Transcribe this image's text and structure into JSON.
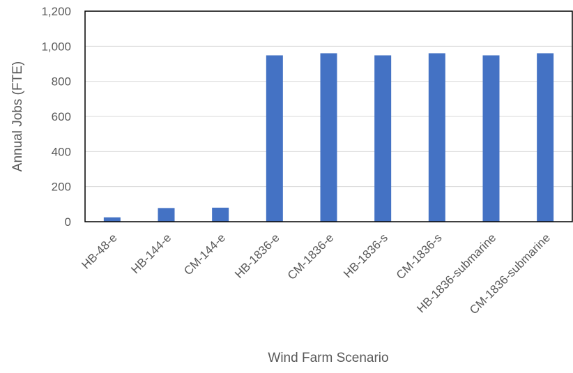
{
  "chart_data": {
    "type": "bar",
    "title": "",
    "xlabel": "Wind Farm Scenario",
    "ylabel": "Annual Jobs (FTE)",
    "ylim": [
      0,
      1200
    ],
    "yticks": [
      0,
      200,
      400,
      600,
      800,
      1000,
      1200
    ],
    "ytick_labels": [
      "0",
      "200",
      "400",
      "600",
      "800",
      "1,000",
      "1,200"
    ],
    "grid": true,
    "legend": "none",
    "bar_color": "#4472c4",
    "categories": [
      "HB-48-e",
      "HB-144-e",
      "CM-144-e",
      "HB-1836-e",
      "CM-1836-e",
      "HB-1836-s",
      "CM-1836-s",
      "HB-1836-submarine",
      "CM-1836-submarine"
    ],
    "values": [
      25,
      78,
      80,
      948,
      960,
      948,
      960,
      948,
      960
    ]
  }
}
